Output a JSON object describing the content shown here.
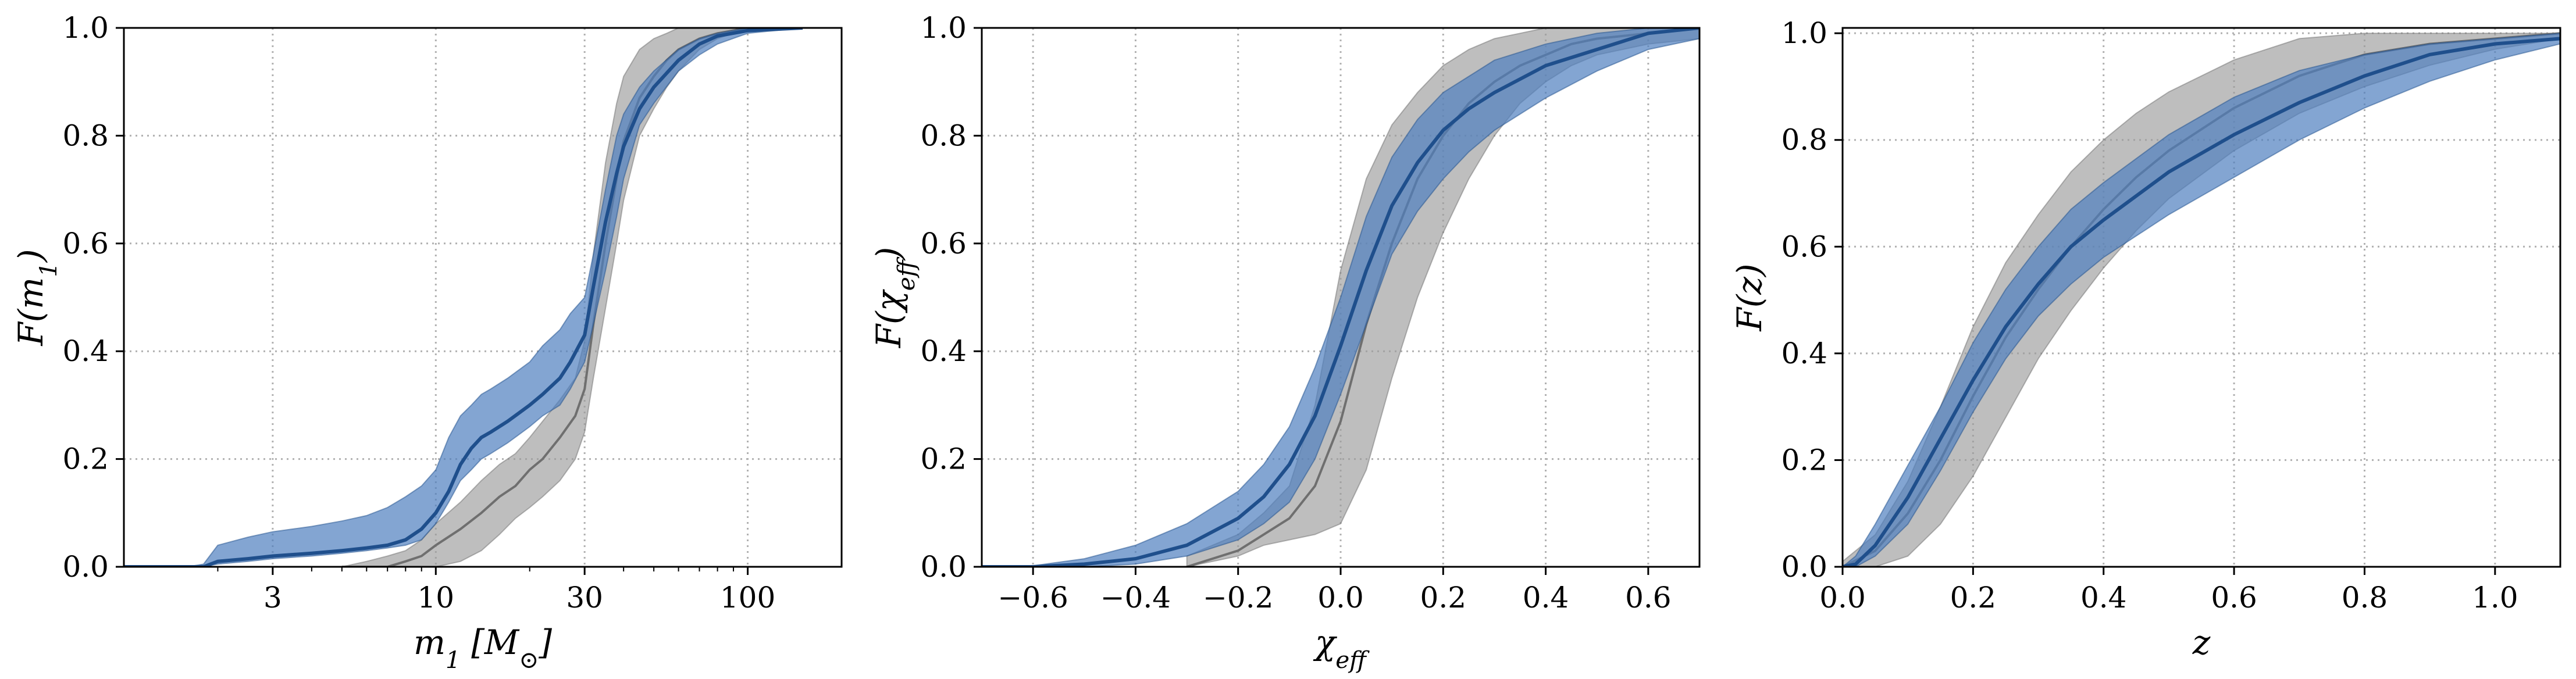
{
  "colors": {
    "model_band": "#4f7fbf",
    "model_line": "#1f4f8c",
    "data_band": "#9b9b9b",
    "data_line": "#6f6f6f",
    "grid": "#b0b0b0"
  },
  "chart_data": [
    {
      "type": "line",
      "xscale": "log",
      "xlim": [
        1,
        200
      ],
      "ylim": [
        0,
        1
      ],
      "xticks": [
        3,
        10,
        30,
        100
      ],
      "xtick_labels": [
        "3",
        "10",
        "30",
        "100"
      ],
      "yticks": [
        0,
        0.2,
        0.4,
        0.6,
        0.8,
        1.0
      ],
      "ytick_labels": [
        "0.0",
        "0.2",
        "0.4",
        "0.6",
        "0.8",
        "1.0"
      ],
      "xlabel": "m_1 [M_⊙]",
      "ylabel": "F(m_1)",
      "grid": true,
      "series": [
        {
          "x": [
            1.0,
            1.3,
            1.6,
            1.8,
            2.0,
            2.5,
            3.0,
            4.0,
            5.0,
            6.0,
            7.0,
            8.0,
            9.0,
            10.0,
            11.0,
            12.0,
            13.0,
            14.0,
            15.0,
            17.0,
            20.0,
            22.0,
            25.0,
            27.0,
            30.0,
            32.0,
            35.0,
            38.0,
            40.0,
            45.0,
            50.0,
            60.0,
            70.0,
            80.0,
            100.0,
            150.0
          ],
          "lower": [
            0.0,
            0.0,
            0.0,
            0.0,
            0.005,
            0.01,
            0.015,
            0.02,
            0.025,
            0.03,
            0.035,
            0.04,
            0.05,
            0.08,
            0.12,
            0.16,
            0.18,
            0.2,
            0.21,
            0.23,
            0.26,
            0.28,
            0.3,
            0.33,
            0.38,
            0.45,
            0.55,
            0.65,
            0.72,
            0.82,
            0.86,
            0.92,
            0.95,
            0.97,
            0.99,
            1.0
          ],
          "median": [
            0.0,
            0.0,
            0.0,
            0.0,
            0.01,
            0.015,
            0.02,
            0.025,
            0.03,
            0.035,
            0.04,
            0.05,
            0.07,
            0.1,
            0.14,
            0.19,
            0.22,
            0.24,
            0.25,
            0.27,
            0.3,
            0.32,
            0.35,
            0.38,
            0.43,
            0.52,
            0.64,
            0.73,
            0.78,
            0.85,
            0.89,
            0.94,
            0.97,
            0.985,
            0.995,
            1.0
          ],
          "upper": [
            0.0,
            0.0,
            0.0,
            0.005,
            0.04,
            0.055,
            0.065,
            0.075,
            0.085,
            0.095,
            0.11,
            0.13,
            0.15,
            0.18,
            0.24,
            0.28,
            0.3,
            0.32,
            0.33,
            0.35,
            0.38,
            0.41,
            0.44,
            0.47,
            0.5,
            0.58,
            0.7,
            0.8,
            0.84,
            0.89,
            0.92,
            0.96,
            0.98,
            0.99,
            1.0,
            1.0
          ]
        },
        {
          "x": [
            5.0,
            6.0,
            7.0,
            8.0,
            9.0,
            10.0,
            12.0,
            14.0,
            16.0,
            18.0,
            20.0,
            22.0,
            25.0,
            28.0,
            30.0,
            32.0,
            35.0,
            38.0,
            40.0,
            45.0,
            50.0,
            55.0,
            60.0,
            70.0,
            80.0,
            100.0,
            150.0
          ],
          "lower": [
            0.0,
            0.0,
            0.0,
            0.0,
            0.0,
            0.0,
            0.01,
            0.03,
            0.06,
            0.09,
            0.11,
            0.13,
            0.16,
            0.2,
            0.25,
            0.35,
            0.48,
            0.6,
            0.68,
            0.8,
            0.85,
            0.89,
            0.92,
            0.96,
            0.98,
            1.0,
            1.0
          ],
          "median": [
            0.0,
            0.0,
            0.0,
            0.01,
            0.02,
            0.04,
            0.07,
            0.1,
            0.13,
            0.15,
            0.18,
            0.2,
            0.24,
            0.28,
            0.33,
            0.45,
            0.6,
            0.72,
            0.79,
            0.87,
            0.91,
            0.94,
            0.96,
            0.98,
            0.99,
            1.0,
            1.0
          ],
          "upper": [
            0.0,
            0.01,
            0.02,
            0.03,
            0.05,
            0.08,
            0.12,
            0.16,
            0.19,
            0.21,
            0.24,
            0.27,
            0.31,
            0.35,
            0.42,
            0.58,
            0.75,
            0.86,
            0.91,
            0.96,
            0.98,
            0.99,
            1.0,
            1.0,
            1.0,
            1.0,
            1.0
          ]
        }
      ]
    },
    {
      "type": "line",
      "xscale": "linear",
      "xlim": [
        -0.7,
        0.7
      ],
      "ylim": [
        0,
        1
      ],
      "xticks": [
        -0.6,
        -0.4,
        -0.2,
        0.0,
        0.2,
        0.4,
        0.6
      ],
      "xtick_labels": [
        "−0.6",
        "−0.4",
        "−0.2",
        "0.0",
        "0.2",
        "0.4",
        "0.6"
      ],
      "yticks": [
        0,
        0.2,
        0.4,
        0.6,
        0.8,
        1.0
      ],
      "ytick_labels": [
        "0.0",
        "0.2",
        "0.4",
        "0.6",
        "0.8",
        "1.0"
      ],
      "xlabel": "χ_eff",
      "ylabel": "F(χ_eff)",
      "grid": true,
      "series": [
        {
          "x": [
            -0.7,
            -0.6,
            -0.5,
            -0.4,
            -0.3,
            -0.2,
            -0.15,
            -0.1,
            -0.05,
            0.0,
            0.05,
            0.1,
            0.15,
            0.2,
            0.25,
            0.3,
            0.4,
            0.5,
            0.6,
            0.7
          ],
          "lower": [
            0.0,
            0.0,
            0.0,
            0.005,
            0.02,
            0.05,
            0.08,
            0.12,
            0.2,
            0.32,
            0.45,
            0.58,
            0.66,
            0.72,
            0.77,
            0.81,
            0.87,
            0.92,
            0.96,
            0.98
          ],
          "median": [
            0.0,
            0.0,
            0.005,
            0.015,
            0.04,
            0.09,
            0.13,
            0.19,
            0.28,
            0.41,
            0.55,
            0.67,
            0.75,
            0.81,
            0.85,
            0.88,
            0.93,
            0.96,
            0.99,
            1.0
          ],
          "upper": [
            0.0,
            0.002,
            0.015,
            0.04,
            0.08,
            0.14,
            0.19,
            0.26,
            0.37,
            0.5,
            0.65,
            0.76,
            0.83,
            0.88,
            0.91,
            0.94,
            0.97,
            0.99,
            1.0,
            1.0
          ]
        },
        {
          "x": [
            -0.3,
            -0.2,
            -0.15,
            -0.1,
            -0.05,
            0.0,
            0.05,
            0.1,
            0.15,
            0.2,
            0.25,
            0.3,
            0.35,
            0.4,
            0.45,
            0.5,
            0.6,
            0.7
          ],
          "lower": [
            0.0,
            0.02,
            0.04,
            0.05,
            0.06,
            0.08,
            0.18,
            0.35,
            0.5,
            0.62,
            0.72,
            0.8,
            0.86,
            0.9,
            0.93,
            0.95,
            0.97,
            0.98
          ],
          "median": [
            0.0,
            0.03,
            0.06,
            0.09,
            0.15,
            0.27,
            0.45,
            0.6,
            0.72,
            0.8,
            0.86,
            0.9,
            0.93,
            0.95,
            0.97,
            0.98,
            0.99,
            1.0
          ],
          "upper": [
            0.02,
            0.06,
            0.1,
            0.15,
            0.3,
            0.55,
            0.72,
            0.82,
            0.88,
            0.93,
            0.96,
            0.98,
            0.99,
            1.0,
            1.0,
            1.0,
            1.0,
            1.0
          ]
        }
      ]
    },
    {
      "type": "line",
      "xscale": "linear",
      "xlim": [
        0.0,
        1.1
      ],
      "ylim": [
        0,
        1.01
      ],
      "xticks": [
        0.0,
        0.2,
        0.4,
        0.6,
        0.8,
        1.0
      ],
      "xtick_labels": [
        "0.0",
        "0.2",
        "0.4",
        "0.6",
        "0.8",
        "1.0"
      ],
      "yticks": [
        0,
        0.2,
        0.4,
        0.6,
        0.8,
        1.0
      ],
      "ytick_labels": [
        "0.0",
        "0.2",
        "0.4",
        "0.6",
        "0.8",
        "1.0"
      ],
      "xlabel": "z",
      "ylabel": "F(z)",
      "grid": true,
      "series": [
        {
          "x": [
            0.0,
            0.02,
            0.05,
            0.1,
            0.15,
            0.2,
            0.25,
            0.3,
            0.35,
            0.4,
            0.5,
            0.6,
            0.7,
            0.8,
            0.9,
            1.0,
            1.1
          ],
          "lower": [
            0.0,
            0.0,
            0.02,
            0.08,
            0.18,
            0.29,
            0.39,
            0.47,
            0.53,
            0.58,
            0.66,
            0.73,
            0.8,
            0.86,
            0.91,
            0.95,
            0.98
          ],
          "median": [
            0.0,
            0.005,
            0.04,
            0.13,
            0.24,
            0.35,
            0.45,
            0.53,
            0.6,
            0.65,
            0.74,
            0.81,
            0.87,
            0.92,
            0.96,
            0.98,
            0.99
          ],
          "upper": [
            0.0,
            0.02,
            0.08,
            0.19,
            0.3,
            0.42,
            0.52,
            0.6,
            0.67,
            0.72,
            0.81,
            0.88,
            0.93,
            0.96,
            0.98,
            0.99,
            1.0
          ]
        },
        {
          "x": [
            0.0,
            0.05,
            0.1,
            0.15,
            0.2,
            0.25,
            0.3,
            0.35,
            0.4,
            0.45,
            0.5,
            0.6,
            0.7,
            0.8,
            0.9,
            1.0,
            1.1
          ],
          "lower": [
            0.0,
            0.0,
            0.02,
            0.08,
            0.17,
            0.28,
            0.39,
            0.48,
            0.56,
            0.63,
            0.69,
            0.78,
            0.85,
            0.9,
            0.94,
            0.97,
            0.99
          ],
          "median": [
            0.0,
            0.03,
            0.1,
            0.2,
            0.32,
            0.43,
            0.52,
            0.6,
            0.67,
            0.73,
            0.78,
            0.86,
            0.92,
            0.96,
            0.98,
            0.99,
            1.0
          ],
          "upper": [
            0.01,
            0.06,
            0.16,
            0.3,
            0.45,
            0.57,
            0.66,
            0.74,
            0.8,
            0.85,
            0.89,
            0.95,
            0.99,
            1.0,
            1.0,
            1.0,
            1.0
          ]
        }
      ]
    }
  ]
}
